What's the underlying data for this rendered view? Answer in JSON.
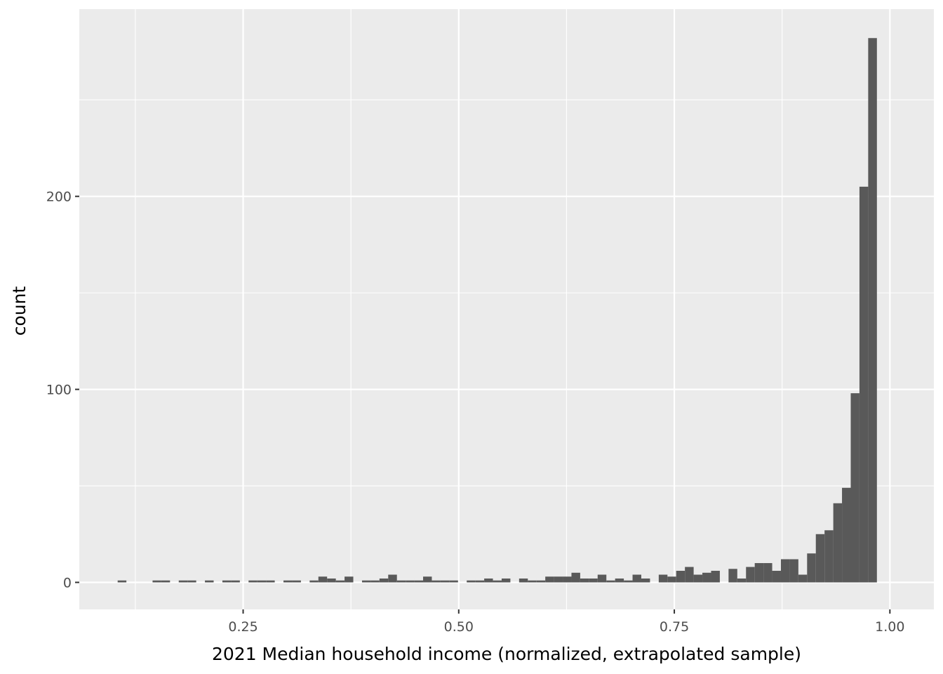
{
  "chart_data": {
    "type": "bar",
    "title": "",
    "xlabel": "2021 Median household income (normalized, extrapolated sample)",
    "ylabel": "count",
    "xlim": [
      0.06,
      1.051
    ],
    "ylim": [
      -14,
      297
    ],
    "x_ticks": [
      0.25,
      0.5,
      0.75,
      1.0
    ],
    "x_tick_labels": [
      "0.25",
      "0.50",
      "0.75",
      "1.00"
    ],
    "x_minor_ticks": [
      0.125,
      0.375,
      0.625,
      0.875
    ],
    "y_ticks": [
      0,
      100,
      200
    ],
    "y_tick_labels": [
      "0",
      "100",
      "200"
    ],
    "y_minor_ticks": [
      50,
      150,
      250
    ],
    "bin_width": 0.01012,
    "bin_start": 0.1045,
    "counts": [
      1,
      0,
      0,
      0,
      1,
      1,
      0,
      1,
      1,
      0,
      1,
      0,
      1,
      1,
      0,
      1,
      1,
      1,
      0,
      1,
      1,
      0,
      1,
      3,
      2,
      1,
      3,
      0,
      1,
      1,
      2,
      4,
      1,
      1,
      1,
      3,
      1,
      1,
      1,
      0,
      1,
      1,
      2,
      1,
      2,
      0,
      2,
      1,
      1,
      3,
      3,
      3,
      5,
      2,
      2,
      4,
      1,
      2,
      1,
      4,
      2,
      0,
      4,
      3,
      6,
      8,
      4,
      5,
      6,
      0,
      7,
      2,
      8,
      10,
      10,
      6,
      12,
      12,
      4,
      15,
      25,
      27,
      41,
      49,
      98,
      205,
      282
    ],
    "bar_color": "#595959",
    "panel_color": "#ebebeb",
    "grid": true,
    "legend": "none"
  }
}
